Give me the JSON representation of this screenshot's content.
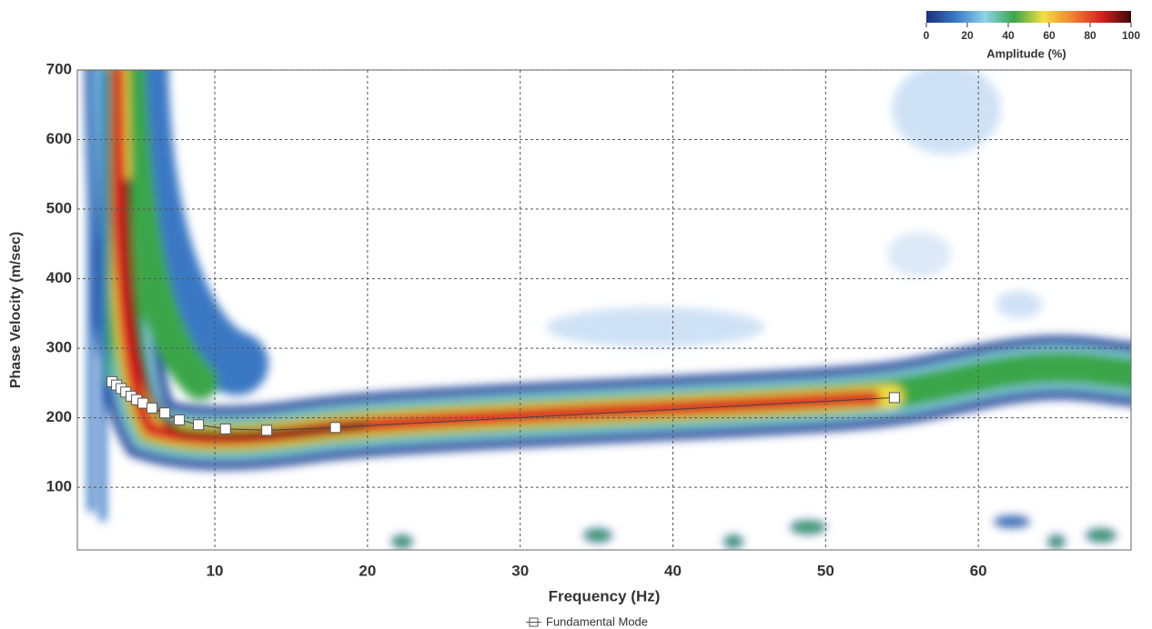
{
  "chart_data": {
    "type": "scatter",
    "xlabel": "Frequency (Hz)",
    "ylabel": "Phase Velocity (m/sec)",
    "x": [
      3.27,
      3.57,
      3.87,
      4.17,
      4.52,
      4.88,
      5.3,
      5.89,
      6.73,
      7.68,
      8.93,
      10.7,
      13.4,
      17.9,
      54.5
    ],
    "series": [
      {
        "name": "Fundamental Mode",
        "color": "#ffffff",
        "values": [
          252,
          247,
          242,
          237,
          231,
          226,
          221,
          214,
          207,
          197,
          190,
          184,
          182,
          186,
          229
        ]
      }
    ],
    "xlim": [
      1,
      70
    ],
    "xticks": [
      10,
      20,
      30,
      40,
      50,
      60
    ],
    "ylim": [
      10,
      700
    ],
    "yticks": [
      100,
      200,
      300,
      400,
      500,
      600,
      700
    ],
    "grid": true,
    "legend": "bottom",
    "colorbar": {
      "label": "Amplitude (%)",
      "lim": [
        0,
        100
      ],
      "ticks": [
        0,
        20,
        40,
        60,
        80,
        100
      ],
      "colors": [
        "#1c2f7a",
        "#3a78c4",
        "#8fd3ea",
        "#3aa64a",
        "#f0e040",
        "#f08030",
        "#d82020",
        "#3a0808"
      ]
    }
  }
}
